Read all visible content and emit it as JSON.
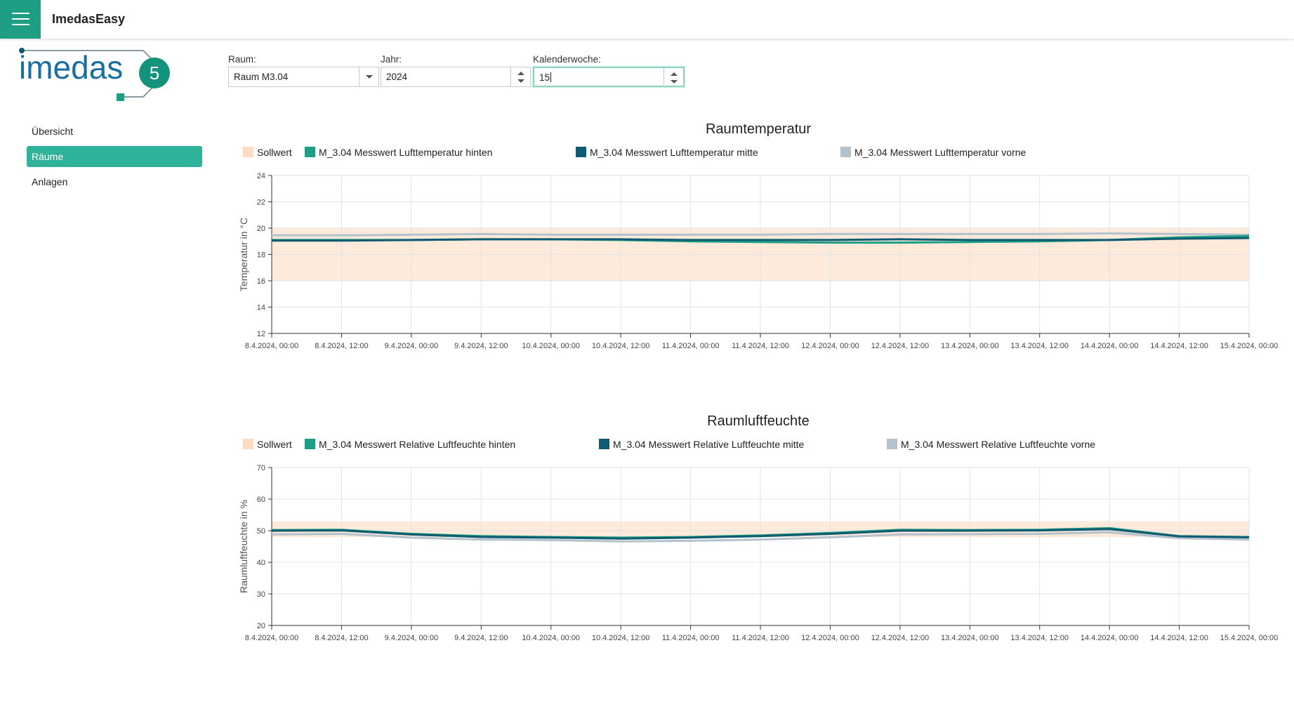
{
  "app": {
    "title": "ImedasEasy"
  },
  "logo": {
    "text": "imedas",
    "version": "5"
  },
  "sidebar": {
    "items": [
      {
        "label": "Übersicht",
        "active": false
      },
      {
        "label": "Räume",
        "active": true
      },
      {
        "label": "Anlagen",
        "active": false
      }
    ]
  },
  "filters": {
    "room": {
      "label": "Raum:",
      "value": "Raum M3.04"
    },
    "year": {
      "label": "Jahr:",
      "value": "2024"
    },
    "week": {
      "label": "Kalenderwoche:",
      "value": "15"
    }
  },
  "colors": {
    "accent": "#1e9e82",
    "setpoint": "#fdeadb",
    "series_hinten": "#1e9e82",
    "series_mitte": "#0e5b72",
    "series_vorne": "#b3c2cc"
  },
  "chart_data": [
    {
      "type": "line",
      "title": "Raumtemperatur",
      "ylabel": "Temperatur in °C",
      "xlabel": "",
      "ylim": [
        12,
        24
      ],
      "yticks": [
        12,
        14,
        16,
        18,
        20,
        22,
        24
      ],
      "xticks": [
        "8.4.2024, 00:00",
        "8.4.2024, 12:00",
        "9.4.2024, 00:00",
        "9.4.2024, 12:00",
        "10.4.2024, 00:00",
        "10.4.2024, 12:00",
        "11.4.2024, 00:00",
        "11.4.2024, 12:00",
        "12.4.2024, 00:00",
        "12.4.2024, 12:00",
        "13.4.2024, 00:00",
        "13.4.2024, 12:00",
        "14.4.2024, 00:00",
        "14.4.2024, 12:00",
        "15.4.2024, 00:00"
      ],
      "grid": true,
      "legend_position": "top-left",
      "setpoint": {
        "name": "Sollwert",
        "range": [
          16,
          20
        ]
      },
      "series": [
        {
          "name": "M_3.04 Messwert Lufttemperatur hinten",
          "values": [
            19.1,
            19.1,
            19.1,
            19.15,
            19.15,
            19.1,
            19.0,
            18.95,
            18.9,
            18.9,
            18.95,
            19.0,
            19.1,
            19.3,
            19.4
          ]
        },
        {
          "name": "M_3.04 Messwert Lufttemperatur mitte",
          "values": [
            19.05,
            19.05,
            19.1,
            19.15,
            19.15,
            19.15,
            19.1,
            19.1,
            19.1,
            19.15,
            19.1,
            19.1,
            19.1,
            19.2,
            19.25
          ]
        },
        {
          "name": "M_3.04 Messwert Lufttemperatur vorne",
          "values": [
            19.45,
            19.45,
            19.5,
            19.55,
            19.5,
            19.5,
            19.5,
            19.5,
            19.55,
            19.55,
            19.55,
            19.55,
            19.6,
            19.55,
            19.5
          ]
        }
      ]
    },
    {
      "type": "line",
      "title": "Raumluftfeuchte",
      "ylabel": "Raumluftfeuchte in %",
      "xlabel": "",
      "ylim": [
        20,
        70
      ],
      "yticks": [
        20,
        30,
        40,
        50,
        60,
        70
      ],
      "xticks": [
        "8.4.2024, 00:00",
        "8.4.2024, 12:00",
        "9.4.2024, 00:00",
        "9.4.2024, 12:00",
        "10.4.2024, 00:00",
        "10.4.2024, 12:00",
        "11.4.2024, 00:00",
        "11.4.2024, 12:00",
        "12.4.2024, 00:00",
        "12.4.2024, 12:00",
        "13.4.2024, 00:00",
        "13.4.2024, 12:00",
        "14.4.2024, 00:00",
        "14.4.2024, 12:00",
        "15.4.2024, 00:00"
      ],
      "grid": true,
      "legend_position": "top-left",
      "setpoint": {
        "name": "Sollwert",
        "range": [
          48,
          53
        ]
      },
      "series": [
        {
          "name": "M_3.04 Messwert Relative Luftfeuchte hinten",
          "values": [
            50.2,
            50.3,
            49.0,
            48.3,
            48.0,
            47.8,
            48.0,
            48.5,
            49.3,
            50.3,
            50.2,
            50.3,
            50.8,
            48.3,
            48.0
          ]
        },
        {
          "name": "M_3.04 Messwert Relative Luftfeuchte mitte",
          "values": [
            50.0,
            50.1,
            48.8,
            48.0,
            47.8,
            47.5,
            47.8,
            48.3,
            49.0,
            50.0,
            50.0,
            50.1,
            50.5,
            48.2,
            47.9
          ]
        },
        {
          "name": "M_3.04 Messwert Relative Luftfeuchte vorne",
          "values": [
            48.8,
            49.0,
            47.8,
            47.2,
            47.0,
            46.6,
            46.8,
            47.2,
            47.9,
            48.8,
            48.9,
            49.0,
            49.5,
            47.6,
            47.2
          ]
        }
      ]
    }
  ]
}
